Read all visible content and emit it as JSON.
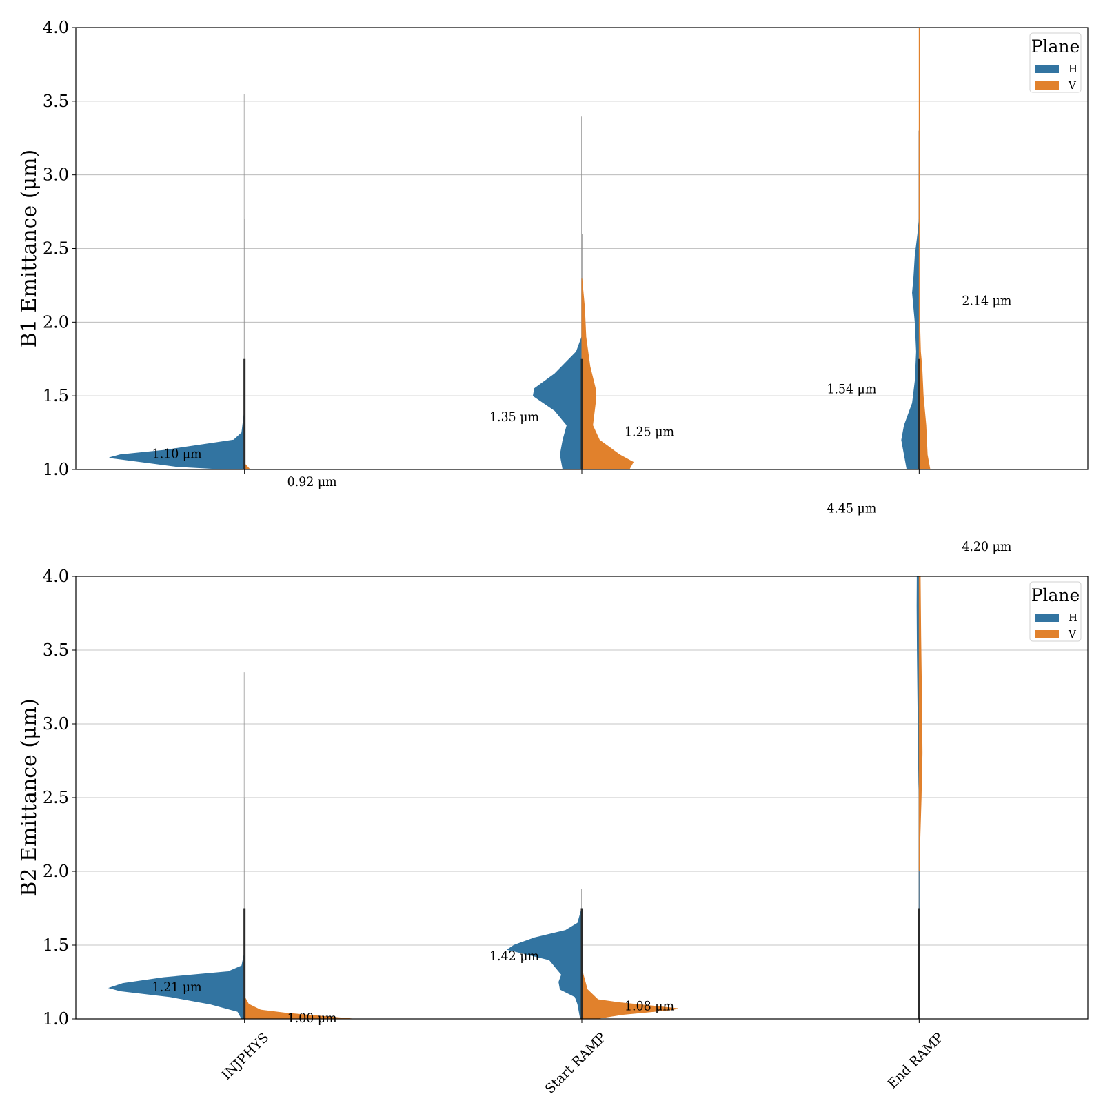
{
  "colors": {
    "H": "#3274a1",
    "V": "#e1812c",
    "grid": "#b0b0b0",
    "frame": "#000000"
  },
  "chart_data": [
    {
      "type": "violin",
      "split": true,
      "ylabel": "B1 Emittance (μm)",
      "ylim": [
        1.0,
        4.0
      ],
      "yticks": [
        "1.0",
        "1.5",
        "2.0",
        "2.5",
        "3.0",
        "3.5",
        "4.0"
      ],
      "grid": true,
      "categories": [
        "INJPHYS",
        "Start RAMP",
        "End RAMP"
      ],
      "show_category_labels": false,
      "legend": {
        "title": "Plane",
        "placement": "top-right",
        "entries": [
          "H",
          "V"
        ]
      },
      "series": [
        {
          "name": "H",
          "violins": [
            {
              "ymin": 1.0,
              "ymax": 3.55,
              "profile": [
                [
                  1.0,
                  0.1
                ],
                [
                  1.02,
                  0.5
                ],
                [
                  1.05,
                  0.75
                ],
                [
                  1.08,
                  1.0
                ],
                [
                  1.1,
                  0.92
                ],
                [
                  1.13,
                  0.6
                ],
                [
                  1.17,
                  0.3
                ],
                [
                  1.2,
                  0.08
                ],
                [
                  1.25,
                  0.02
                ],
                [
                  1.4,
                  0.0
                ]
              ]
            },
            {
              "ymin": 1.0,
              "ymax": 3.4,
              "profile": [
                [
                  1.0,
                  0.14
                ],
                [
                  1.1,
                  0.16
                ],
                [
                  1.2,
                  0.14
                ],
                [
                  1.3,
                  0.11
                ],
                [
                  1.4,
                  0.2
                ],
                [
                  1.5,
                  0.36
                ],
                [
                  1.55,
                  0.35
                ],
                [
                  1.65,
                  0.2
                ],
                [
                  1.8,
                  0.04
                ],
                [
                  1.9,
                  0.0
                ]
              ]
            },
            {
              "ymin": 1.0,
              "ymax": 3.3,
              "profile": [
                [
                  1.0,
                  0.09
                ],
                [
                  1.1,
                  0.11
                ],
                [
                  1.2,
                  0.13
                ],
                [
                  1.3,
                  0.11
                ],
                [
                  1.45,
                  0.05
                ],
                [
                  1.6,
                  0.03
                ],
                [
                  1.8,
                  0.02
                ],
                [
                  2.0,
                  0.03
                ],
                [
                  2.2,
                  0.05
                ],
                [
                  2.3,
                  0.04
                ],
                [
                  2.45,
                  0.03
                ],
                [
                  2.6,
                  0.01
                ],
                [
                  2.7,
                  0.0
                ]
              ]
            }
          ]
        },
        {
          "name": "V",
          "violins": [
            {
              "ymin": 1.0,
              "ymax": 2.7,
              "profile": [
                [
                  1.0,
                  0.04
                ],
                [
                  1.02,
                  0.02
                ],
                [
                  1.04,
                  0.0
                ]
              ]
            },
            {
              "ymin": 1.0,
              "ymax": 2.6,
              "profile": [
                [
                  1.0,
                  0.35
                ],
                [
                  1.05,
                  0.38
                ],
                [
                  1.1,
                  0.28
                ],
                [
                  1.2,
                  0.13
                ],
                [
                  1.3,
                  0.08
                ],
                [
                  1.45,
                  0.1
                ],
                [
                  1.55,
                  0.1
                ],
                [
                  1.7,
                  0.06
                ],
                [
                  1.9,
                  0.03
                ],
                [
                  2.1,
                  0.02
                ],
                [
                  2.3,
                  0.0
                ]
              ]
            },
            {
              "ymin": 1.0,
              "ymax": 4.0,
              "profile": [
                [
                  1.0,
                  0.08
                ],
                [
                  1.1,
                  0.06
                ],
                [
                  1.3,
                  0.05
                ],
                [
                  1.5,
                  0.03
                ],
                [
                  1.7,
                  0.02
                ],
                [
                  1.8,
                  0.01
                ],
                [
                  2.0,
                  0.004
                ],
                [
                  3.0,
                  0.002
                ],
                [
                  4.0,
                  0.001
                ]
              ]
            }
          ]
        }
      ],
      "annotations": [
        {
          "text": "1.10 μm",
          "category": 0,
          "offset": -1,
          "y": 1.11
        },
        {
          "text": "0.92 μm",
          "category": 0,
          "offset": 1,
          "y": 0.92
        },
        {
          "text": "1.35 μm",
          "category": 1,
          "offset": -1,
          "y": 1.36
        },
        {
          "text": "1.25 μm",
          "category": 1,
          "offset": 1,
          "y": 1.26
        },
        {
          "text": "1.54 μm",
          "category": 2,
          "offset": -1,
          "y": 1.55
        },
        {
          "text": "2.14 μm",
          "category": 2,
          "offset": 1,
          "y": 2.15
        },
        {
          "text": "4.45 μm",
          "category": 2,
          "offset": -1,
          "y": 0.74
        },
        {
          "text": "4.20 μm",
          "category": 2,
          "offset": 1,
          "y": 0.48
        }
      ]
    },
    {
      "type": "violin",
      "split": true,
      "ylabel": "B2 Emittance (μm)",
      "ylim": [
        1.0,
        4.0
      ],
      "yticks": [
        "1.0",
        "1.5",
        "2.0",
        "2.5",
        "3.0",
        "3.5",
        "4.0"
      ],
      "grid": true,
      "categories": [
        "INJPHYS",
        "Start RAMP",
        "End RAMP"
      ],
      "show_category_labels": true,
      "legend": {
        "title": "Plane",
        "placement": "top-right",
        "entries": [
          "H",
          "V"
        ]
      },
      "series": [
        {
          "name": "H",
          "violins": [
            {
              "ymin": 1.0,
              "ymax": 3.35,
              "profile": [
                [
                  1.0,
                  0.02
                ],
                [
                  1.05,
                  0.05
                ],
                [
                  1.1,
                  0.25
                ],
                [
                  1.15,
                  0.55
                ],
                [
                  1.19,
                  0.92
                ],
                [
                  1.21,
                  1.0
                ],
                [
                  1.24,
                  0.9
                ],
                [
                  1.28,
                  0.6
                ],
                [
                  1.32,
                  0.12
                ],
                [
                  1.36,
                  0.02
                ],
                [
                  1.45,
                  0.0
                ]
              ]
            },
            {
              "ymin": 1.0,
              "ymax": 1.88,
              "profile": [
                [
                  1.0,
                  0.01
                ],
                [
                  1.1,
                  0.03
                ],
                [
                  1.15,
                  0.05
                ],
                [
                  1.2,
                  0.16
                ],
                [
                  1.25,
                  0.17
                ],
                [
                  1.3,
                  0.15
                ],
                [
                  1.4,
                  0.24
                ],
                [
                  1.47,
                  0.55
                ],
                [
                  1.5,
                  0.5
                ],
                [
                  1.55,
                  0.35
                ],
                [
                  1.6,
                  0.12
                ],
                [
                  1.65,
                  0.03
                ],
                [
                  1.75,
                  0.0
                ]
              ]
            },
            {
              "ymin": 1.0,
              "ymax": 4.0,
              "profile": [
                [
                  1.0,
                  0.0
                ],
                [
                  2.5,
                  0.0
                ],
                [
                  2.6,
                  0.003
                ],
                [
                  3.0,
                  0.008
                ],
                [
                  3.5,
                  0.014
                ],
                [
                  3.8,
                  0.016
                ],
                [
                  4.0,
                  0.015
                ]
              ]
            }
          ]
        },
        {
          "name": "V",
          "violins": [
            {
              "ymin": 1.0,
              "ymax": 2.5,
              "profile": [
                [
                  1.0,
                  0.8
                ],
                [
                  1.02,
                  0.55
                ],
                [
                  1.04,
                  0.3
                ],
                [
                  1.06,
                  0.12
                ],
                [
                  1.1,
                  0.03
                ],
                [
                  1.15,
                  0.0
                ]
              ]
            },
            {
              "ymin": 1.0,
              "ymax": 1.35,
              "profile": [
                [
                  1.0,
                  0.1
                ],
                [
                  1.03,
                  0.3
                ],
                [
                  1.06,
                  0.65
                ],
                [
                  1.07,
                  0.71
                ],
                [
                  1.09,
                  0.5
                ],
                [
                  1.11,
                  0.28
                ],
                [
                  1.13,
                  0.12
                ],
                [
                  1.2,
                  0.04
                ],
                [
                  1.3,
                  0.01
                ],
                [
                  1.35,
                  0.0
                ]
              ]
            },
            {
              "ymin": 1.0,
              "ymax": 4.0,
              "profile": [
                [
                  2.0,
                  0.0
                ],
                [
                  2.2,
                  0.005
                ],
                [
                  2.5,
                  0.015
                ],
                [
                  2.8,
                  0.022
                ],
                [
                  3.2,
                  0.018
                ],
                [
                  3.6,
                  0.012
                ],
                [
                  4.0,
                  0.008
                ]
              ]
            }
          ]
        }
      ],
      "annotations": [
        {
          "text": "1.21 μm",
          "category": 0,
          "offset": -1,
          "y": 1.22
        },
        {
          "text": "1.00 μm",
          "category": 0,
          "offset": 1,
          "y": 1.01
        },
        {
          "text": "1.42 μm",
          "category": 1,
          "offset": -1,
          "y": 1.43
        },
        {
          "text": "1.08 μm",
          "category": 1,
          "offset": 1,
          "y": 1.09
        }
      ]
    }
  ]
}
